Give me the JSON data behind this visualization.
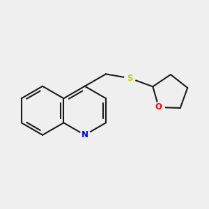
{
  "background_color": "#efefef",
  "bond_color": "#1a1a1a",
  "bond_width": 1.5,
  "atom_colors": {
    "N": "#0000ee",
    "S": "#cccc00",
    "O": "#ff0000",
    "C": "#1a1a1a"
  },
  "font_size": 8.5,
  "figsize": [
    3.0,
    3.0
  ],
  "dpi": 100
}
